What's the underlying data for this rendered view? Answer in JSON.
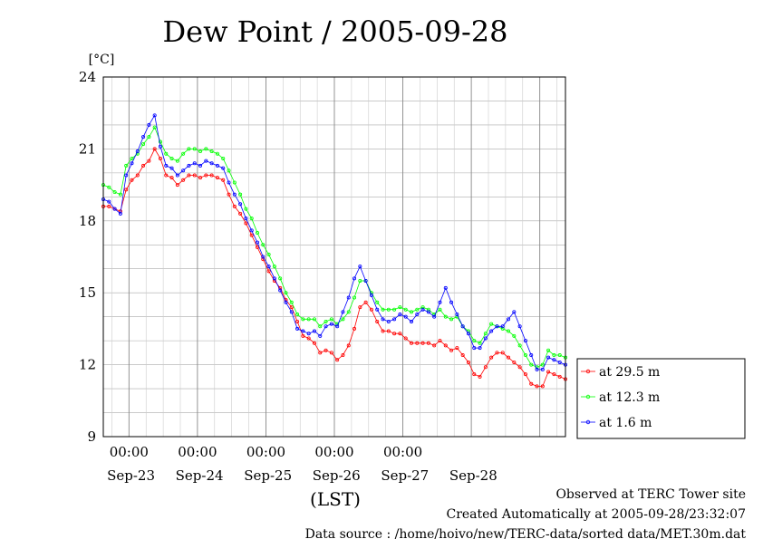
{
  "chart_data": {
    "type": "line",
    "title": "Dew Point / 2005-09-28",
    "ylabel": "[°C]",
    "xlabel": "(LST)",
    "ylim": [
      9,
      24
    ],
    "yticks": [
      "9",
      "12",
      "15",
      "18",
      "21",
      "24"
    ],
    "x_range_days": [
      "2005-09-22 15:00",
      "2005-09-29 00:00"
    ],
    "time_ticks": [
      "00:00",
      "00:00",
      "00:00",
      "00:00",
      "00:00"
    ],
    "date_ticks": [
      "Sep-23",
      "Sep-24",
      "Sep-25",
      "Sep-26",
      "Sep-27",
      "Sep-28"
    ],
    "grid": true,
    "legend_position": "right",
    "series": [
      {
        "name": "at 29.5 m",
        "color": "#ff0000",
        "x_hours": [
          0,
          2,
          4,
          6,
          8,
          10,
          12,
          14,
          16,
          18,
          20,
          22,
          24,
          26,
          28,
          30,
          32,
          34,
          36,
          38,
          40,
          42,
          44,
          46,
          48,
          50,
          52,
          54,
          56,
          58,
          60,
          62,
          64,
          66,
          68,
          70,
          72,
          74,
          76,
          78,
          80,
          82,
          84,
          86,
          88,
          90,
          92,
          94,
          96,
          98,
          100,
          102,
          104,
          106,
          108,
          110,
          112,
          114,
          116,
          118,
          120,
          122,
          124,
          126,
          128,
          130,
          132,
          134,
          136,
          138,
          140,
          142,
          144,
          146,
          148,
          150,
          152,
          154,
          156,
          158,
          160,
          162
        ],
        "values": [
          18.6,
          18.6,
          18.5,
          18.4,
          19.3,
          19.7,
          19.9,
          20.3,
          20.5,
          21.0,
          20.6,
          19.9,
          19.8,
          19.5,
          19.7,
          19.9,
          19.9,
          19.8,
          19.9,
          19.9,
          19.8,
          19.7,
          19.1,
          18.6,
          18.3,
          17.9,
          17.4,
          16.9,
          16.4,
          15.9,
          15.5,
          15.2,
          14.7,
          14.4,
          13.8,
          13.2,
          13.1,
          12.9,
          12.5,
          12.6,
          12.5,
          12.2,
          12.4,
          12.8,
          13.5,
          14.4,
          14.6,
          14.3,
          13.8,
          13.4,
          13.4,
          13.3,
          13.3,
          13.1,
          12.9,
          12.9,
          12.9,
          12.9,
          12.8,
          13.0,
          12.8,
          12.6,
          12.7,
          12.4,
          12.1,
          11.6,
          11.5,
          11.9,
          12.3,
          12.5,
          12.5,
          12.3,
          12.1,
          11.9,
          11.6,
          11.2,
          11.1,
          11.1,
          11.7,
          11.6,
          11.5,
          11.4
        ]
      },
      {
        "name": "at 12.3 m",
        "color": "#00ff00",
        "x_hours": [
          0,
          2,
          4,
          6,
          8,
          10,
          12,
          14,
          16,
          18,
          20,
          22,
          24,
          26,
          28,
          30,
          32,
          34,
          36,
          38,
          40,
          42,
          44,
          46,
          48,
          50,
          52,
          54,
          56,
          58,
          60,
          62,
          64,
          66,
          68,
          70,
          72,
          74,
          76,
          78,
          80,
          82,
          84,
          86,
          88,
          90,
          92,
          94,
          96,
          98,
          100,
          102,
          104,
          106,
          108,
          110,
          112,
          114,
          116,
          118,
          120,
          122,
          124,
          126,
          128,
          130,
          132,
          134,
          136,
          138,
          140,
          142,
          144,
          146,
          148,
          150,
          152,
          154,
          156,
          158,
          160,
          162
        ],
        "values": [
          19.5,
          19.4,
          19.2,
          19.1,
          20.3,
          20.6,
          20.8,
          21.2,
          21.5,
          21.9,
          21.3,
          20.8,
          20.6,
          20.5,
          20.8,
          21.0,
          21.0,
          20.9,
          21.0,
          20.9,
          20.8,
          20.6,
          20.1,
          19.6,
          19.1,
          18.5,
          18.1,
          17.5,
          17.0,
          16.6,
          16.1,
          15.6,
          15.0,
          14.6,
          14.1,
          13.9,
          13.9,
          13.9,
          13.6,
          13.8,
          13.9,
          13.7,
          13.9,
          14.2,
          14.8,
          15.5,
          15.5,
          15.0,
          14.6,
          14.3,
          14.3,
          14.3,
          14.4,
          14.3,
          14.2,
          14.3,
          14.4,
          14.3,
          14.1,
          14.3,
          14.0,
          13.9,
          14.0,
          13.6,
          13.4,
          13.0,
          12.9,
          13.3,
          13.7,
          13.6,
          13.5,
          13.4,
          13.2,
          12.8,
          12.4,
          12.0,
          11.9,
          12.0,
          12.6,
          12.4,
          12.4,
          12.3
        ]
      },
      {
        "name": "at 1.6 m",
        "color": "#0000ff",
        "x_hours": [
          0,
          2,
          4,
          6,
          8,
          10,
          12,
          14,
          16,
          18,
          20,
          22,
          24,
          26,
          28,
          30,
          32,
          34,
          36,
          38,
          40,
          42,
          44,
          46,
          48,
          50,
          52,
          54,
          56,
          58,
          60,
          62,
          64,
          66,
          68,
          70,
          72,
          74,
          76,
          78,
          80,
          82,
          84,
          86,
          88,
          90,
          92,
          94,
          96,
          98,
          100,
          102,
          104,
          106,
          108,
          110,
          112,
          114,
          116,
          118,
          120,
          122,
          124,
          126,
          128,
          130,
          132,
          134,
          136,
          138,
          140,
          142,
          144,
          146,
          148,
          150,
          152,
          154,
          156,
          158,
          160,
          162
        ],
        "values": [
          18.9,
          18.8,
          18.5,
          18.3,
          19.9,
          20.4,
          20.9,
          21.5,
          22.0,
          22.4,
          21.1,
          20.3,
          20.2,
          19.9,
          20.1,
          20.3,
          20.4,
          20.3,
          20.5,
          20.4,
          20.3,
          20.2,
          19.6,
          19.1,
          18.7,
          18.1,
          17.6,
          17.1,
          16.5,
          16.1,
          15.6,
          15.1,
          14.6,
          14.2,
          13.5,
          13.4,
          13.3,
          13.4,
          13.2,
          13.6,
          13.7,
          13.6,
          14.2,
          14.8,
          15.6,
          16.1,
          15.5,
          14.9,
          14.3,
          13.9,
          13.8,
          13.9,
          14.1,
          14.0,
          13.8,
          14.1,
          14.3,
          14.2,
          14.0,
          14.6,
          15.2,
          14.6,
          14.1,
          13.6,
          13.3,
          12.7,
          12.7,
          13.1,
          13.4,
          13.6,
          13.6,
          13.9,
          14.2,
          13.6,
          13.0,
          12.4,
          11.8,
          11.8,
          12.3,
          12.2,
          12.1,
          12.0
        ]
      }
    ]
  },
  "footer": {
    "line1": "Observed at TERC Tower site",
    "line2": "Created Automatically at 2005-09-28/23:32:07",
    "line3": "Data source : /home/hoivo/new/TERC-data/sorted  data/MET.30m.dat"
  }
}
